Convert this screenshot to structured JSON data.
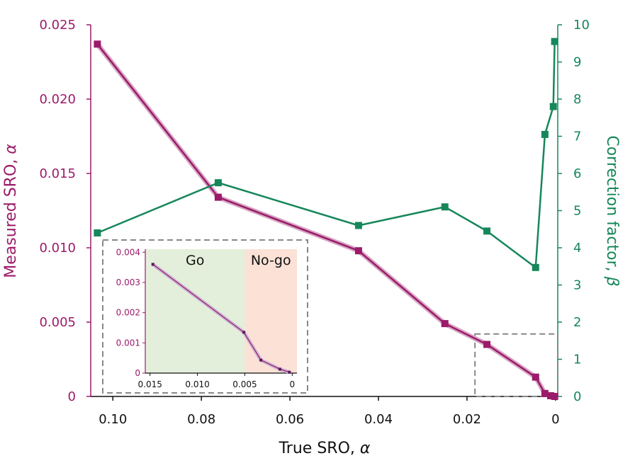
{
  "chart_data": {
    "type": "line",
    "x_axis": {
      "label_text": "True SRO, ",
      "label_symbol": "α",
      "range": [
        0.105,
        -0.0005
      ],
      "reversed": true,
      "ticks": [
        0.1,
        0.08,
        0.06,
        0.04,
        0.02,
        0
      ],
      "tick_labels": [
        "0.10",
        "0.08",
        "0.06",
        "0.04",
        "0.02",
        "0"
      ]
    },
    "y_left_axis": {
      "label_text": "Measured SRO, ",
      "label_symbol": "α",
      "range": [
        0,
        0.025
      ],
      "ticks": [
        0,
        0.005,
        0.01,
        0.015,
        0.02,
        0.025
      ],
      "tick_labels": [
        "0",
        "0.005",
        "0.010",
        "0.015",
        "0.020",
        "0.025"
      ],
      "color": "#9b1b6a"
    },
    "y_right_axis": {
      "label_text": "Correction factor, ",
      "label_symbol": "β",
      "range": [
        0,
        10
      ],
      "ticks": [
        0,
        1,
        2,
        3,
        4,
        5,
        6,
        7,
        8,
        9,
        10
      ],
      "tick_labels": [
        "0",
        "1",
        "2",
        "3",
        "4",
        "5",
        "6",
        "7",
        "8",
        "9",
        "10"
      ],
      "color": "#16875a"
    },
    "series": [
      {
        "axis": "left",
        "color": "#9b1b6a",
        "marker": "square",
        "points": [
          [
            0.1035,
            0.0237
          ],
          [
            0.0762,
            0.0134
          ],
          [
            0.0445,
            0.0098
          ],
          [
            0.025,
            0.0049
          ],
          [
            0.0155,
            0.0035
          ],
          [
            0.0045,
            0.0013
          ],
          [
            0.0024,
            0.0002
          ],
          [
            0.0011,
            5e-05
          ],
          [
            0.0002,
            0.0
          ]
        ]
      },
      {
        "axis": "right",
        "color": "#16875a",
        "marker": "square",
        "points": [
          [
            0.1035,
            4.4
          ],
          [
            0.0762,
            5.75
          ],
          [
            0.0445,
            4.6
          ],
          [
            0.025,
            5.1
          ],
          [
            0.0155,
            4.45
          ],
          [
            0.0045,
            3.47
          ],
          [
            0.0024,
            7.05
          ],
          [
            0.0005,
            7.8
          ],
          [
            0.0002,
            9.55
          ]
        ]
      }
    ],
    "zoom_box": {
      "x_range": [
        0.0182,
        -0.0005
      ],
      "y_range": [
        0,
        0.0042
      ],
      "style": "dashed"
    },
    "inset": {
      "x_range": [
        0.0155,
        -0.0005
      ],
      "y_range": [
        0,
        0.0041
      ],
      "x_ticks": [
        0.015,
        0.01,
        0.005,
        0
      ],
      "x_tick_labels": [
        "0.015",
        "0.010",
        "0.005",
        "0"
      ],
      "y_ticks": [
        0,
        0.001,
        0.002,
        0.003,
        0.004
      ],
      "y_tick_labels": [
        "0",
        "0.001",
        "0.002",
        "0.003",
        "0.004"
      ],
      "regions": [
        {
          "label": "Go",
          "x_range": [
            0.0155,
            0.005
          ],
          "color": "#e3efda"
        },
        {
          "label": "No-go",
          "x_range": [
            0.005,
            -0.0005
          ],
          "color": "#fbe1d6"
        }
      ],
      "points": [
        [
          0.0147,
          0.0036
        ],
        [
          0.0051,
          0.00135
        ],
        [
          0.0033,
          0.00043
        ],
        [
          0.0013,
          0.00013
        ],
        [
          0.0003,
          3e-05
        ]
      ]
    }
  }
}
